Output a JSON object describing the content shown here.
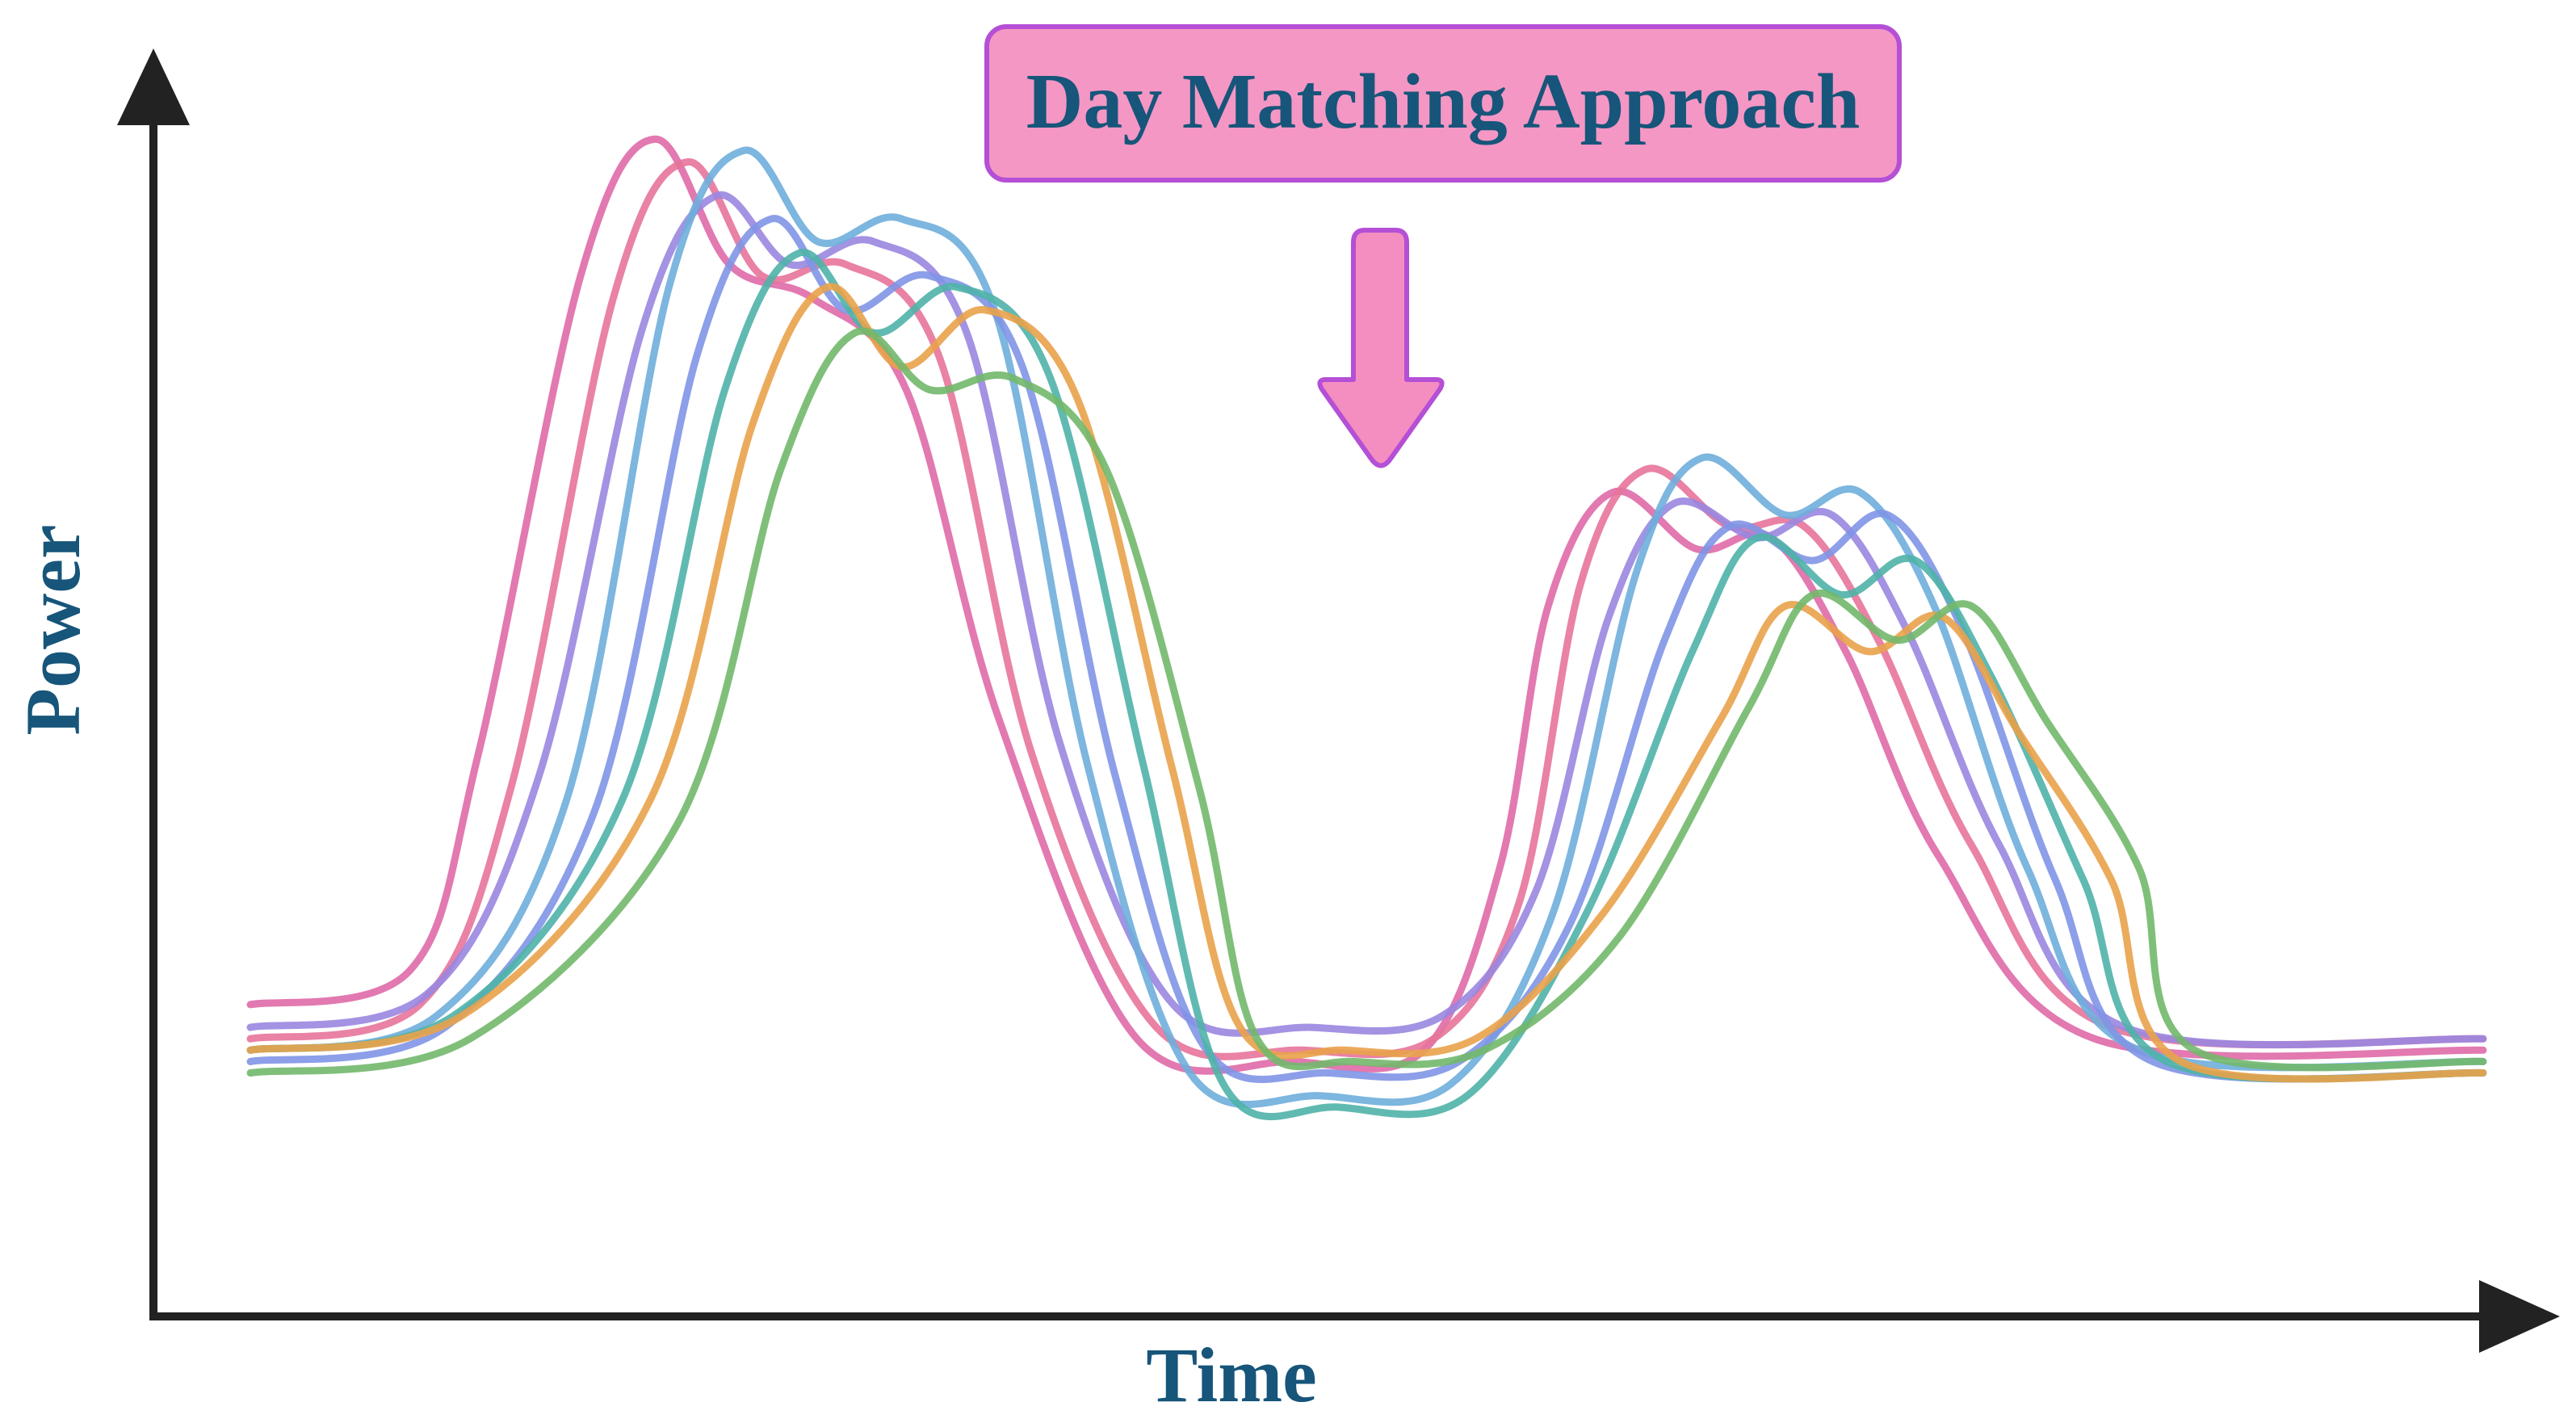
{
  "chart_data": {
    "type": "line",
    "title": "Day Matching Approach",
    "xlabel": "Time",
    "ylabel": "Power",
    "xlim": [
      0,
      24
    ],
    "ylim": [
      0,
      1
    ],
    "grid": false,
    "legend": "none",
    "colors": {
      "title_text": "#17557a",
      "title_fill": "#f497c4",
      "title_border": "#b44fd6",
      "arrow_fill": "#f48ec0",
      "arrow_border": "#b44fd6",
      "axis_line": "#222222"
    },
    "series": [
      {
        "color": "#df6aa8",
        "shift": -0.95,
        "p1": 0.97,
        "d1": 0.86,
        "p2": 0.83,
        "p3": 0.66,
        "d2": 0.61,
        "p4": 0.62,
        "base": 0.21,
        "trough": 0.16,
        "end": 0.16
      },
      {
        "color": "#e7749a",
        "shift": -0.6,
        "p1": 0.95,
        "d1": 0.85,
        "p2": 0.86,
        "p3": 0.68,
        "d2": 0.63,
        "p4": 0.63,
        "base": 0.18,
        "trough": 0.17,
        "end": 0.17
      },
      {
        "color": "#9a86e0",
        "shift": -0.3,
        "p1": 0.92,
        "d1": 0.86,
        "p2": 0.88,
        "p3": 0.65,
        "d2": 0.62,
        "p4": 0.64,
        "base": 0.19,
        "trough": 0.19,
        "end": 0.17
      },
      {
        "color": "#6faedb",
        "shift": 0.0,
        "p1": 0.96,
        "d1": 0.88,
        "p2": 0.9,
        "p3": 0.69,
        "d2": 0.64,
        "p4": 0.66,
        "base": 0.17,
        "trough": 0.13,
        "end": 0.15
      },
      {
        "color": "#7f95e5",
        "shift": 0.3,
        "p1": 0.9,
        "d1": 0.82,
        "p2": 0.85,
        "p3": 0.63,
        "d2": 0.6,
        "p4": 0.64,
        "base": 0.16,
        "trough": 0.15,
        "end": 0.14
      },
      {
        "color": "#4fb3a9",
        "shift": 0.6,
        "p1": 0.87,
        "d1": 0.8,
        "p2": 0.84,
        "p3": 0.62,
        "d2": 0.57,
        "p4": 0.6,
        "base": 0.17,
        "trough": 0.12,
        "end": 0.14
      },
      {
        "color": "#e9a24a",
        "shift": 0.9,
        "p1": 0.84,
        "d1": 0.77,
        "p2": 0.82,
        "p3": 0.56,
        "d2": 0.52,
        "p4": 0.55,
        "base": 0.17,
        "trough": 0.17,
        "end": 0.14
      },
      {
        "color": "#72b86c",
        "shift": 1.2,
        "p1": 0.8,
        "d1": 0.75,
        "p2": 0.76,
        "p3": 0.57,
        "d2": 0.53,
        "p4": 0.56,
        "base": 0.15,
        "trough": 0.16,
        "end": 0.15
      }
    ]
  }
}
